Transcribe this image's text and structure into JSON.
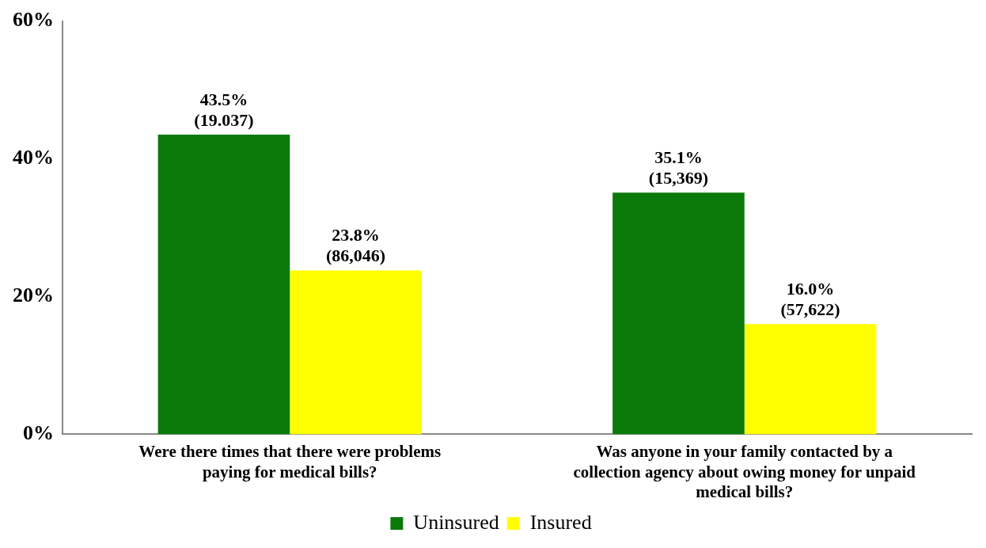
{
  "chart_data": {
    "type": "bar",
    "categories": [
      "Were there times that there were problems paying for medical bills?",
      "Was anyone in your family contacted by a collection agency about owing money for unpaid medical bills?"
    ],
    "series": [
      {
        "name": "Uninsured",
        "color": "#0b7a0b",
        "values": [
          43.5,
          35.1
        ],
        "value_labels": [
          "43.5% (19.037)",
          "35.1% (15,369)"
        ]
      },
      {
        "name": "Insured",
        "color": "#ffff00",
        "values": [
          23.8,
          16.0
        ],
        "value_labels": [
          "23.8% (86,046)",
          "16.0% (57,622)"
        ]
      }
    ],
    "ylim": [
      0,
      60
    ],
    "yticks": [
      {
        "value": 0,
        "label": "0%"
      },
      {
        "value": 20,
        "label": "20%"
      },
      {
        "value": 40,
        "label": "40%"
      },
      {
        "value": 60,
        "label": "60%"
      }
    ],
    "legend": "bottom"
  }
}
